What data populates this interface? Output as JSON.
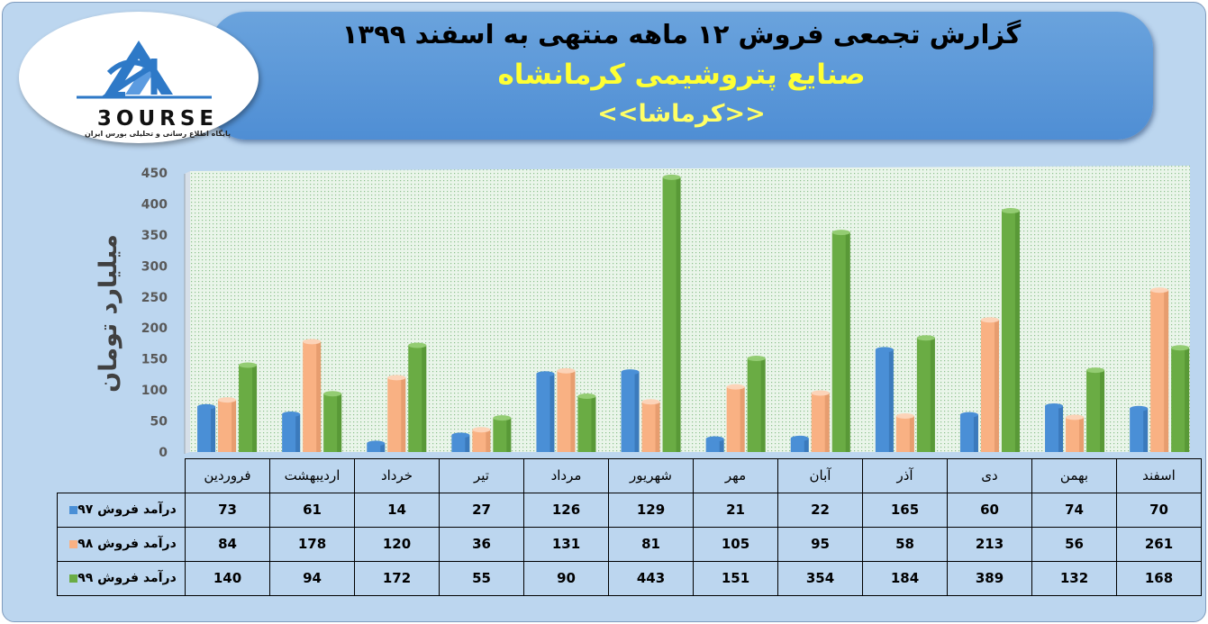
{
  "header": {
    "title_line1": "گزارش تجمعی فروش ۱۲ ماهه منتهی به اسفند ۱۳۹۹",
    "title_line2": "صنایع پتروشیمی کرمانشاه",
    "title_line3": "<<کرماشا>>"
  },
  "logo": {
    "word": "3OURSE",
    "tagline": "پایگاه اطلاع رسانی و تحلیلی بورس ایران"
  },
  "colors": {
    "series1": "#4a8fd6",
    "series2": "#f9b183",
    "series3": "#6aac44"
  },
  "chart_data": {
    "type": "bar",
    "ylabel": "میلیارد تومان",
    "ylim": [
      0,
      450
    ],
    "yticks": [
      0,
      50,
      100,
      150,
      200,
      250,
      300,
      350,
      400,
      450
    ],
    "grid": false,
    "legend": "table-left",
    "categories": [
      "فروردین",
      "اردیبهشت",
      "خرداد",
      "تیر",
      "مرداد",
      "شهریور",
      "مهر",
      "آبان",
      "آذر",
      "دی",
      "بهمن",
      "اسفند"
    ],
    "series": [
      {
        "name": "درآمد فروش ۹۷",
        "values": [
          73,
          61,
          14,
          27,
          126,
          129,
          21,
          22,
          165,
          60,
          74,
          70
        ]
      },
      {
        "name": "درآمد فروش ۹۸",
        "values": [
          84,
          178,
          120,
          36,
          131,
          81,
          105,
          95,
          58,
          213,
          56,
          261
        ]
      },
      {
        "name": "درآمد فروش ۹۹",
        "values": [
          140,
          94,
          172,
          55,
          90,
          443,
          151,
          354,
          184,
          389,
          132,
          168
        ]
      }
    ]
  }
}
